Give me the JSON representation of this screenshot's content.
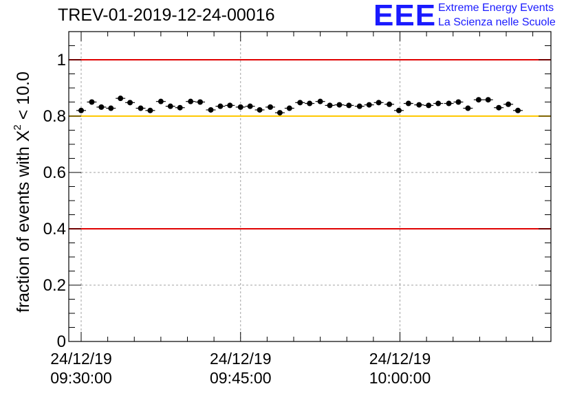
{
  "chart_data": {
    "type": "scatter",
    "title": "TREV-01-2019-12-24-00016",
    "ylabel": "fraction of events with",
    "ylabel_chi": "X",
    "ylabel_exp": "2",
    "ylabel_tail": "< 10.0",
    "xlabel": "",
    "ylim": [
      0,
      1.1
    ],
    "yticks": [
      {
        "value": 0,
        "label": "0"
      },
      {
        "value": 0.2,
        "label": "0.2"
      },
      {
        "value": 0.4,
        "label": "0.4"
      },
      {
        "value": 0.6,
        "label": "0.6"
      },
      {
        "value": 0.8,
        "label": "0.8"
      },
      {
        "value": 1.0,
        "label": "1"
      }
    ],
    "xlim_minutes": [
      0,
      44.5
    ],
    "xticks": [
      {
        "minutes": 0,
        "date": "24/12/19",
        "time": "09:30:00"
      },
      {
        "minutes": 15,
        "date": "24/12/19",
        "time": "09:45:00"
      },
      {
        "minutes": 30,
        "date": "24/12/19",
        "time": "10:00:00"
      }
    ],
    "grid": true,
    "reference_lines": [
      {
        "y": 1.0,
        "color": "#e00000"
      },
      {
        "y": 0.8,
        "color": "#ffc800"
      },
      {
        "y": 0.4,
        "color": "#e00000"
      }
    ],
    "series": [
      {
        "marker_color": "#000000",
        "points": [
          {
            "x": 0.0,
            "y": 0.82
          },
          {
            "x": 1.0,
            "y": 0.85
          },
          {
            "x": 1.9,
            "y": 0.832
          },
          {
            "x": 2.8,
            "y": 0.828
          },
          {
            "x": 3.7,
            "y": 0.863
          },
          {
            "x": 4.6,
            "y": 0.848
          },
          {
            "x": 5.6,
            "y": 0.828
          },
          {
            "x": 6.5,
            "y": 0.82
          },
          {
            "x": 7.5,
            "y": 0.852
          },
          {
            "x": 8.4,
            "y": 0.835
          },
          {
            "x": 9.3,
            "y": 0.83
          },
          {
            "x": 10.3,
            "y": 0.852
          },
          {
            "x": 11.2,
            "y": 0.85
          },
          {
            "x": 12.2,
            "y": 0.822
          },
          {
            "x": 13.1,
            "y": 0.835
          },
          {
            "x": 14.0,
            "y": 0.838
          },
          {
            "x": 15.0,
            "y": 0.832
          },
          {
            "x": 15.9,
            "y": 0.835
          },
          {
            "x": 16.8,
            "y": 0.822
          },
          {
            "x": 17.8,
            "y": 0.832
          },
          {
            "x": 18.7,
            "y": 0.812
          },
          {
            "x": 19.6,
            "y": 0.828
          },
          {
            "x": 20.6,
            "y": 0.848
          },
          {
            "x": 21.5,
            "y": 0.845
          },
          {
            "x": 22.5,
            "y": 0.852
          },
          {
            "x": 23.4,
            "y": 0.838
          },
          {
            "x": 24.3,
            "y": 0.84
          },
          {
            "x": 25.2,
            "y": 0.838
          },
          {
            "x": 26.2,
            "y": 0.835
          },
          {
            "x": 27.1,
            "y": 0.84
          },
          {
            "x": 28.0,
            "y": 0.848
          },
          {
            "x": 29.0,
            "y": 0.842
          },
          {
            "x": 29.9,
            "y": 0.82
          },
          {
            "x": 30.8,
            "y": 0.845
          },
          {
            "x": 31.8,
            "y": 0.84
          },
          {
            "x": 32.7,
            "y": 0.838
          },
          {
            "x": 33.6,
            "y": 0.845
          },
          {
            "x": 34.6,
            "y": 0.845
          },
          {
            "x": 35.5,
            "y": 0.85
          },
          {
            "x": 36.4,
            "y": 0.828
          },
          {
            "x": 37.4,
            "y": 0.858
          },
          {
            "x": 38.3,
            "y": 0.858
          },
          {
            "x": 39.3,
            "y": 0.83
          },
          {
            "x": 40.2,
            "y": 0.842
          },
          {
            "x": 41.1,
            "y": 0.82
          }
        ]
      }
    ]
  },
  "logo": {
    "word": "EEE",
    "line1": "Extreme Energy Events",
    "line2": "La Scienza nelle Scuole",
    "color": "#1a1aff"
  }
}
